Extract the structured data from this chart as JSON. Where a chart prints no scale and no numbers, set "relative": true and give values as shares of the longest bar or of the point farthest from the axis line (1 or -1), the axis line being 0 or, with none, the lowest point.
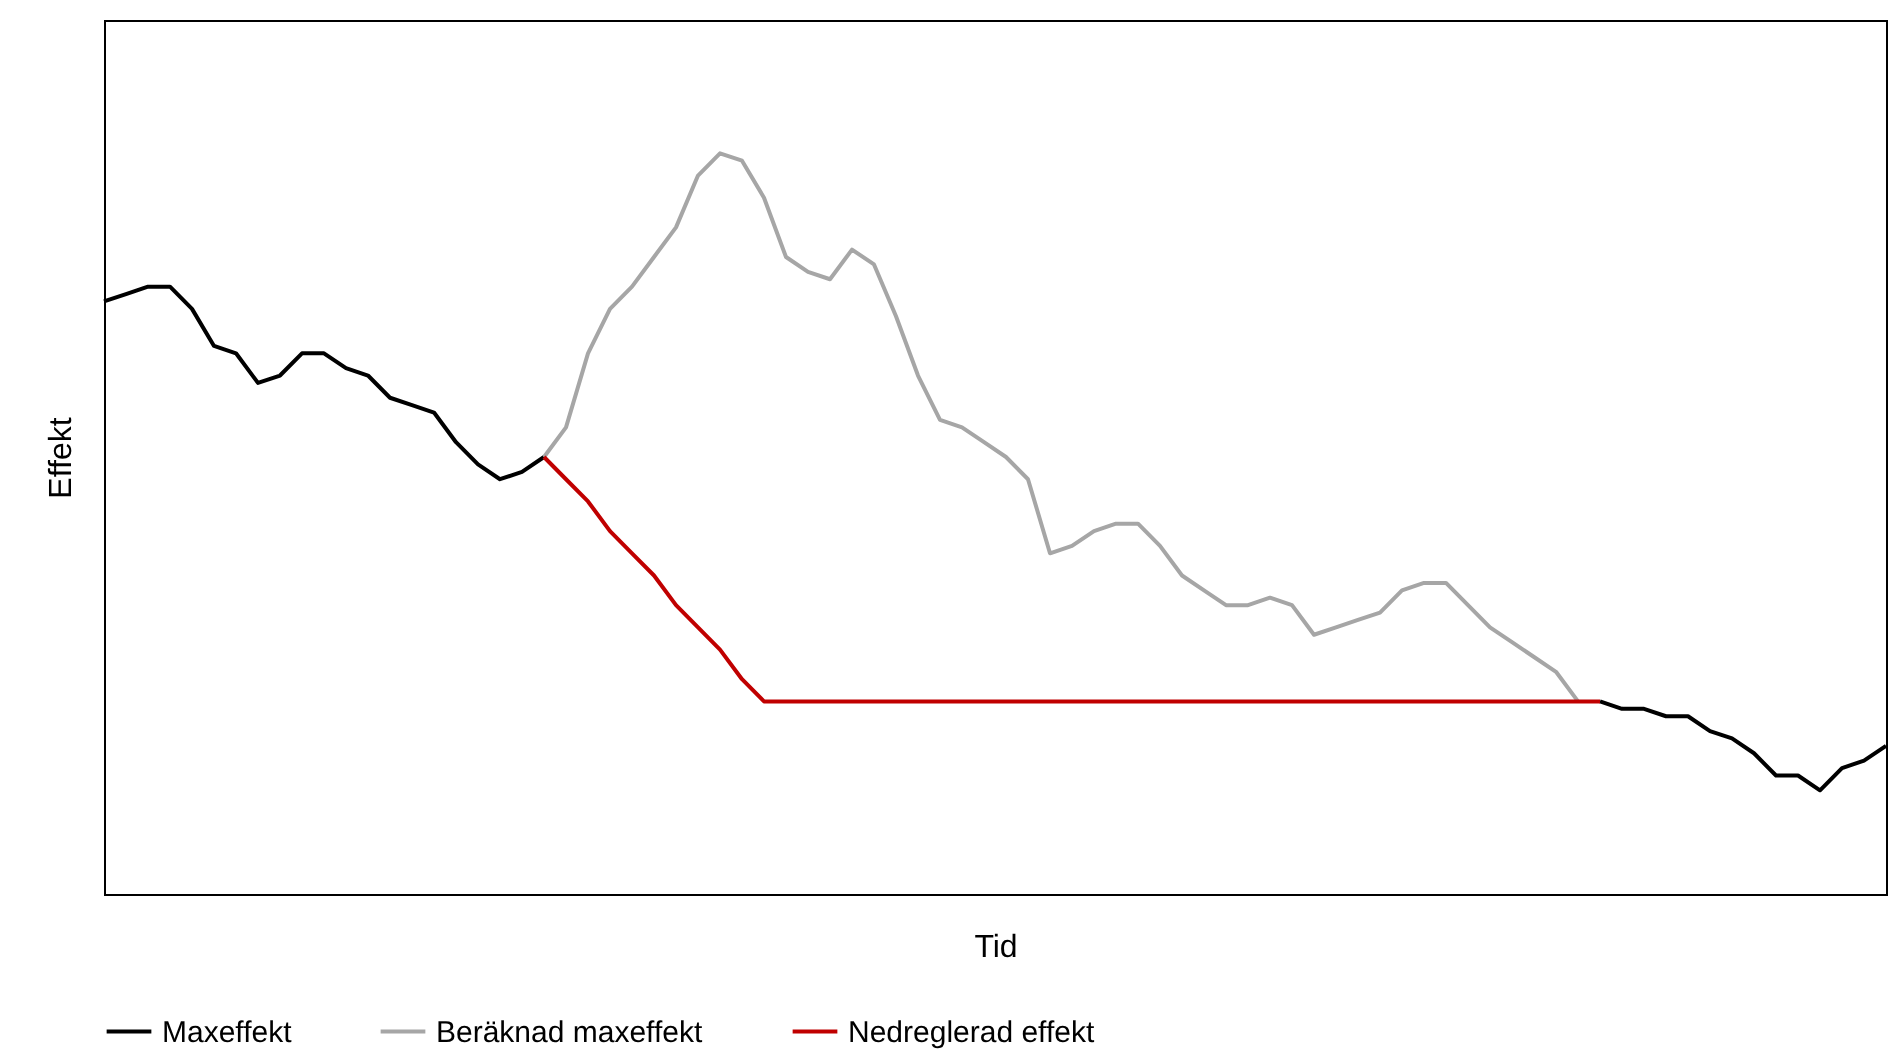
{
  "chart_data": {
    "type": "line",
    "xlabel": "Tid",
    "ylabel": "Effekt",
    "relative": true,
    "legend": "bottom",
    "grid": false,
    "marker": "none",
    "line_style": "solid",
    "categories": [
      null,
      null,
      null,
      null,
      null,
      null,
      null,
      null,
      null,
      null,
      null,
      null,
      null,
      null,
      null,
      null,
      null,
      null,
      null,
      null,
      null,
      null,
      null,
      null,
      null,
      null,
      null,
      null,
      null,
      null,
      null,
      null,
      null,
      null,
      null,
      null,
      null,
      null,
      null,
      null,
      null,
      null,
      null,
      null,
      null,
      null,
      null,
      null,
      null,
      null,
      null,
      null,
      null,
      null,
      null,
      null,
      null,
      null,
      null,
      null,
      null,
      null,
      null,
      null,
      null,
      null,
      null,
      null,
      null,
      null,
      null,
      null,
      null,
      null,
      null,
      null,
      null,
      null,
      null,
      null,
      null,
      null
    ],
    "series": [
      {
        "name": "Maxeffekt",
        "color": "#000000",
        "values": [
          0.8,
          0.81,
          0.82,
          0.82,
          0.79,
          0.74,
          0.73,
          0.69,
          0.7,
          0.73,
          0.73,
          0.71,
          0.7,
          0.67,
          0.66,
          0.65,
          0.61,
          0.58,
          0.56,
          0.57,
          0.59,
          null,
          null,
          null,
          null,
          null,
          null,
          null,
          null,
          null,
          null,
          null,
          null,
          null,
          null,
          null,
          null,
          null,
          null,
          null,
          null,
          null,
          null,
          null,
          null,
          null,
          null,
          null,
          null,
          null,
          null,
          null,
          null,
          null,
          null,
          null,
          null,
          null,
          null,
          null,
          null,
          null,
          null,
          null,
          null,
          null,
          null,
          null,
          0.26,
          0.25,
          0.25,
          0.24,
          0.24,
          0.22,
          0.21,
          0.19,
          0.16,
          0.16,
          0.14,
          0.17,
          0.18,
          0.2
        ]
      },
      {
        "name": "Beräknad maxeffekt",
        "color": "#a6a6a6",
        "values": [
          null,
          null,
          null,
          null,
          null,
          null,
          null,
          null,
          null,
          null,
          null,
          null,
          null,
          null,
          null,
          null,
          null,
          null,
          null,
          null,
          0.59,
          0.63,
          0.73,
          0.79,
          0.82,
          0.86,
          0.9,
          0.97,
          1.0,
          0.99,
          0.94,
          0.86,
          0.84,
          0.83,
          0.87,
          0.85,
          0.78,
          0.7,
          0.64,
          0.63,
          0.61,
          0.59,
          0.56,
          0.46,
          0.47,
          0.49,
          0.5,
          0.5,
          0.47,
          0.43,
          0.41,
          0.39,
          0.39,
          0.4,
          0.39,
          0.35,
          0.36,
          0.37,
          0.38,
          0.41,
          0.42,
          0.42,
          0.39,
          0.36,
          0.34,
          0.32,
          0.3,
          0.26,
          null,
          null,
          null,
          null,
          null,
          null,
          null,
          null,
          null,
          null,
          null,
          null,
          null,
          null
        ]
      },
      {
        "name": "Nedreglerad effekt",
        "color": "#c00000",
        "values": [
          null,
          null,
          null,
          null,
          null,
          null,
          null,
          null,
          null,
          null,
          null,
          null,
          null,
          null,
          null,
          null,
          null,
          null,
          null,
          null,
          0.59,
          0.56,
          0.53,
          0.49,
          0.46,
          0.43,
          0.39,
          0.36,
          0.33,
          0.29,
          0.26,
          0.26,
          0.26,
          0.26,
          0.26,
          0.26,
          0.26,
          0.26,
          0.26,
          0.26,
          0.26,
          0.26,
          0.26,
          0.26,
          0.26,
          0.26,
          0.26,
          0.26,
          0.26,
          0.26,
          0.26,
          0.26,
          0.26,
          0.26,
          0.26,
          0.26,
          0.26,
          0.26,
          0.26,
          0.26,
          0.26,
          0.26,
          0.26,
          0.26,
          0.26,
          0.26,
          0.26,
          0.26,
          0.26,
          null,
          null,
          null,
          null,
          null,
          null,
          null,
          null,
          null,
          null,
          null,
          null,
          null
        ]
      }
    ]
  }
}
